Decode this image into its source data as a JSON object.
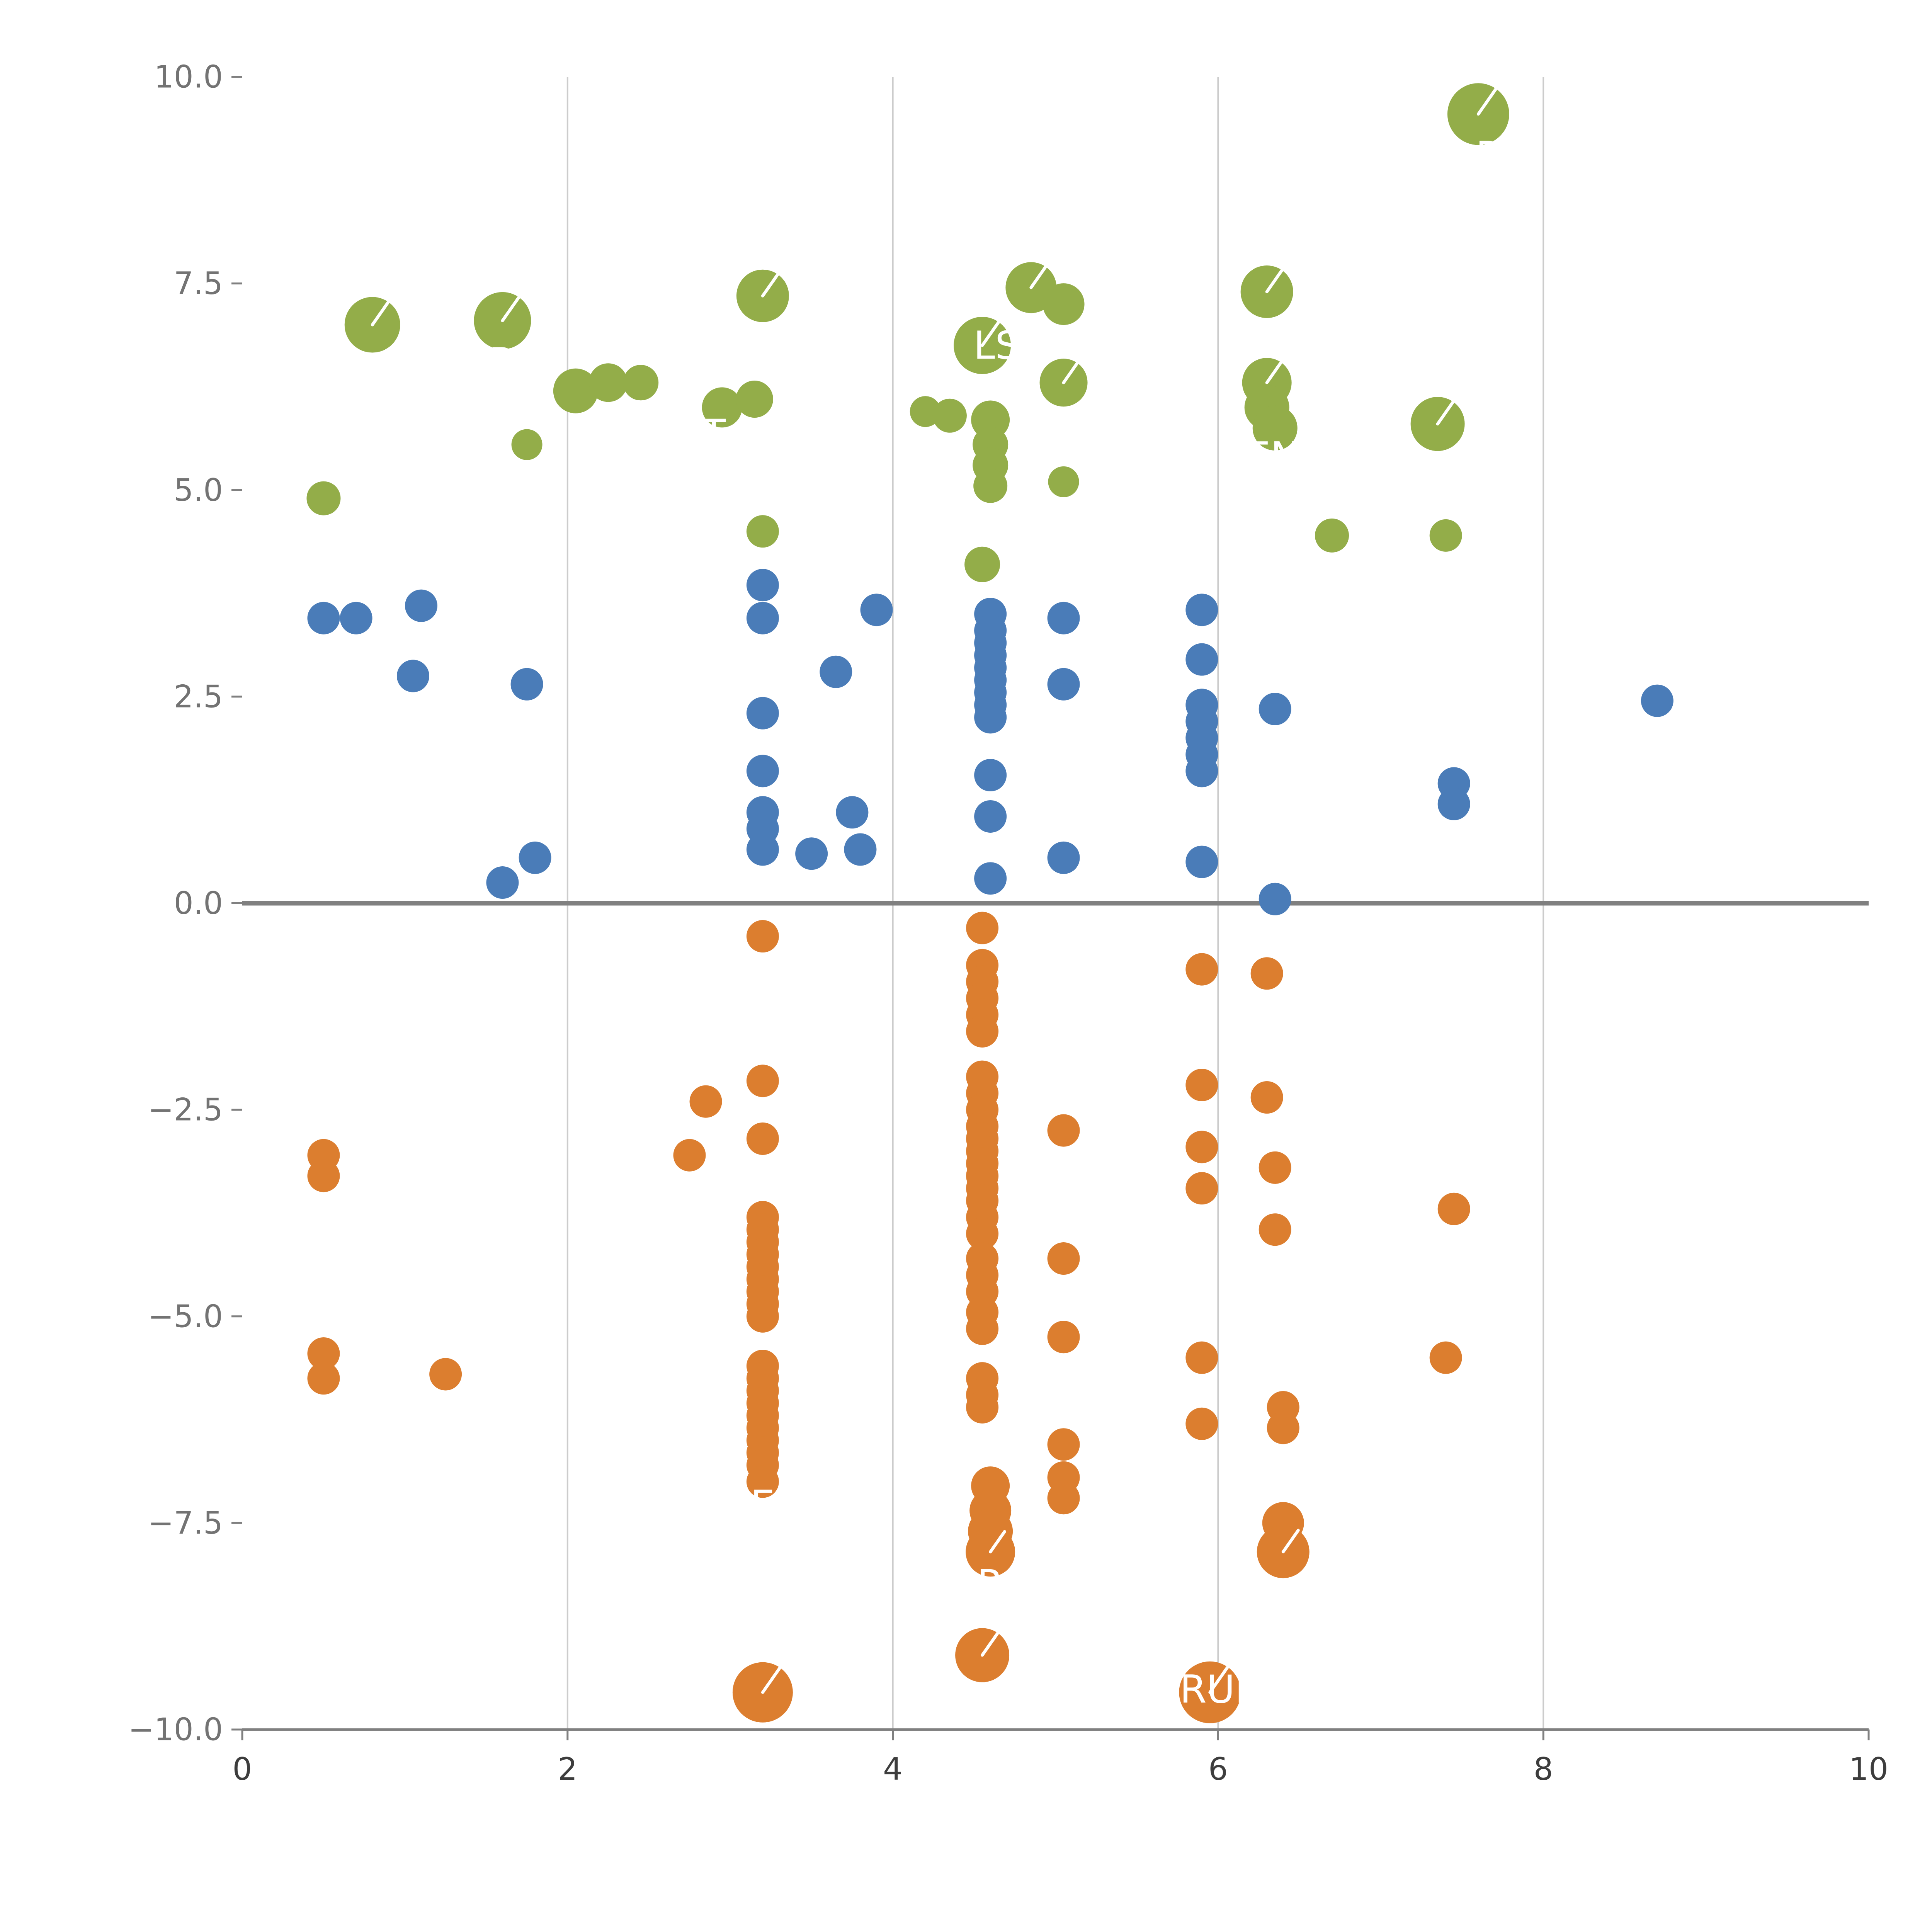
{
  "chart_data": {
    "type": "scatter",
    "title": "",
    "xlabel": "",
    "ylabel": "",
    "xlim": [
      0,
      10
    ],
    "ylim": [
      -10,
      10
    ],
    "x_ticks": [
      0,
      2,
      4,
      6,
      8,
      10
    ],
    "x_tick_labels": [
      "0",
      "2",
      "4",
      "6",
      "8",
      "10"
    ],
    "y_ticks": [
      10.0,
      7.5,
      5.0,
      2.5,
      0.0,
      -2.5,
      -5.0,
      -7.5,
      -10.0
    ],
    "y_tick_labels": [
      "10.0",
      "7.5",
      "5.0",
      "2.5",
      "0.0",
      "−2.5",
      "−5.0",
      "−7.5",
      "−10.0"
    ],
    "grid": "vertical-only",
    "grid_x": [
      2,
      4,
      6,
      8
    ],
    "zero_line": true,
    "legend": "none",
    "colors": {
      "green": "#93ad49",
      "blue": "#4a7cb8",
      "orange": "#dc7e2f",
      "grid": "#cccccc",
      "zero_line": "#808080",
      "axis": "#808080",
      "x_tick_label": "#3d3d3d",
      "y_tick_label": "#737373",
      "point_label": "#ffffff"
    },
    "point_labels_visible": [
      "R",
      "T",
      "LSI",
      "EN",
      "R",
      "E",
      "R",
      "RUI"
    ],
    "series": [
      {
        "name": "green",
        "color_key": "green",
        "default_radius": 42,
        "points": [
          [
            0.5,
            4.9,
            44
          ],
          [
            0.8,
            7.0,
            72
          ],
          [
            1.6,
            7.05,
            74,
            "R",
            [
              0,
              1.45
            ]
          ],
          [
            1.75,
            5.55,
            40
          ],
          [
            2.05,
            6.2,
            58
          ],
          [
            2.25,
            6.3,
            50
          ],
          [
            2.45,
            6.3,
            46
          ],
          [
            2.95,
            6.0,
            52,
            "T",
            [
              -0.4,
              1.3
            ]
          ],
          [
            3.15,
            6.1,
            48
          ],
          [
            3.2,
            7.35,
            68
          ],
          [
            3.2,
            4.5,
            42
          ],
          [
            4.2,
            5.95,
            40
          ],
          [
            4.35,
            5.9,
            44
          ],
          [
            4.55,
            6.75,
            74,
            "LSI",
            [
              0.7,
              0.0
            ]
          ],
          [
            4.6,
            5.85,
            50
          ],
          [
            4.6,
            5.55,
            46
          ],
          [
            4.6,
            5.3,
            46
          ],
          [
            4.6,
            5.05,
            44
          ],
          [
            4.55,
            4.1,
            46
          ],
          [
            4.85,
            7.45,
            66
          ],
          [
            5.05,
            7.25,
            54
          ],
          [
            5.05,
            6.3,
            62
          ],
          [
            5.05,
            5.1,
            40
          ],
          [
            6.3,
            7.4,
            68
          ],
          [
            6.3,
            6.3,
            64
          ],
          [
            6.3,
            6.0,
            58
          ],
          [
            6.35,
            5.75,
            58,
            "EN",
            [
              -0.1,
              1.25
            ]
          ],
          [
            6.7,
            4.45,
            44
          ],
          [
            7.35,
            5.8,
            70
          ],
          [
            7.4,
            4.45,
            42
          ],
          [
            7.6,
            9.55,
            80,
            "R",
            [
              0.35,
              1.35
            ]
          ]
        ]
      },
      {
        "name": "blue",
        "color_key": "blue",
        "default_radius": 42,
        "points": [
          [
            0.5,
            3.45
          ],
          [
            0.7,
            3.45
          ],
          [
            1.1,
            3.6
          ],
          [
            1.05,
            2.75
          ],
          [
            1.75,
            2.65
          ],
          [
            1.6,
            0.25
          ],
          [
            1.8,
            0.55
          ],
          [
            3.2,
            3.85
          ],
          [
            3.2,
            3.45
          ],
          [
            3.2,
            2.3
          ],
          [
            3.2,
            1.6
          ],
          [
            3.2,
            1.1
          ],
          [
            3.2,
            0.9
          ],
          [
            3.2,
            0.65
          ],
          [
            3.5,
            0.6
          ],
          [
            3.65,
            2.8
          ],
          [
            3.75,
            1.1
          ],
          [
            3.8,
            0.65
          ],
          [
            3.9,
            3.55
          ],
          [
            4.6,
            3.5
          ],
          [
            4.6,
            3.3
          ],
          [
            4.6,
            3.15
          ],
          [
            4.6,
            3.0
          ],
          [
            4.6,
            2.85
          ],
          [
            4.6,
            2.7
          ],
          [
            4.6,
            2.55
          ],
          [
            4.6,
            2.4
          ],
          [
            4.6,
            2.25
          ],
          [
            4.6,
            1.55
          ],
          [
            4.6,
            1.05
          ],
          [
            4.6,
            0.3
          ],
          [
            5.05,
            3.45
          ],
          [
            5.05,
            2.65
          ],
          [
            5.05,
            0.55
          ],
          [
            5.9,
            3.55
          ],
          [
            5.9,
            2.95
          ],
          [
            5.9,
            2.4
          ],
          [
            5.9,
            2.2
          ],
          [
            5.9,
            2.0
          ],
          [
            5.9,
            1.8
          ],
          [
            5.9,
            1.6
          ],
          [
            5.9,
            0.5
          ],
          [
            6.35,
            2.35
          ],
          [
            6.35,
            0.05
          ],
          [
            7.45,
            1.45
          ],
          [
            7.45,
            1.2
          ],
          [
            8.7,
            2.45
          ]
        ]
      },
      {
        "name": "orange",
        "color_key": "orange",
        "default_radius": 42,
        "points": [
          [
            0.5,
            -3.05
          ],
          [
            0.5,
            -3.3
          ],
          [
            0.5,
            -5.45
          ],
          [
            0.5,
            -5.75
          ],
          [
            1.25,
            -5.7
          ],
          [
            2.75,
            -3.05
          ],
          [
            2.85,
            -2.4
          ],
          [
            3.2,
            -0.4
          ],
          [
            3.2,
            -2.15
          ],
          [
            3.2,
            -2.85
          ],
          [
            3.2,
            -3.8
          ],
          [
            3.2,
            -3.95
          ],
          [
            3.2,
            -4.1
          ],
          [
            3.2,
            -4.25
          ],
          [
            3.2,
            -4.4
          ],
          [
            3.2,
            -4.55
          ],
          [
            3.2,
            -4.7
          ],
          [
            3.2,
            -4.85
          ],
          [
            3.2,
            -5.0
          ],
          [
            3.2,
            -5.6
          ],
          [
            3.2,
            -5.75
          ],
          [
            3.2,
            -5.9
          ],
          [
            3.2,
            -6.05
          ],
          [
            3.2,
            -6.2
          ],
          [
            3.2,
            -6.35
          ],
          [
            3.2,
            -6.5
          ],
          [
            3.2,
            -6.65
          ],
          [
            3.2,
            -6.8
          ],
          [
            3.2,
            -7.0,
            42,
            "E",
            [
              0,
              1.4
            ]
          ],
          [
            3.2,
            -9.55,
            78
          ],
          [
            4.55,
            -0.3
          ],
          [
            4.55,
            -0.75
          ],
          [
            4.55,
            -0.95
          ],
          [
            4.55,
            -1.15
          ],
          [
            4.55,
            -1.35
          ],
          [
            4.55,
            -1.55
          ],
          [
            4.55,
            -2.1
          ],
          [
            4.55,
            -2.3
          ],
          [
            4.55,
            -2.5
          ],
          [
            4.55,
            -2.7
          ],
          [
            4.55,
            -2.85
          ],
          [
            4.55,
            -3.0
          ],
          [
            4.55,
            -3.15
          ],
          [
            4.55,
            -3.3
          ],
          [
            4.55,
            -3.45
          ],
          [
            4.55,
            -3.6
          ],
          [
            4.55,
            -3.8
          ],
          [
            4.55,
            -4.0
          ],
          [
            4.55,
            -4.3
          ],
          [
            4.55,
            -4.5
          ],
          [
            4.55,
            -4.7
          ],
          [
            4.55,
            -4.95
          ],
          [
            4.55,
            -5.15
          ],
          [
            4.55,
            -5.75
          ],
          [
            4.55,
            -5.95
          ],
          [
            4.55,
            -6.1
          ],
          [
            4.6,
            -7.05,
            50
          ],
          [
            4.6,
            -7.35,
            54
          ],
          [
            4.6,
            -7.6,
            58
          ],
          [
            4.6,
            -7.85,
            64,
            "R",
            [
              0,
              1.3
            ]
          ],
          [
            4.55,
            -9.1,
            70
          ],
          [
            5.05,
            -2.75
          ],
          [
            5.05,
            -4.3
          ],
          [
            5.05,
            -5.25
          ],
          [
            5.05,
            -6.55
          ],
          [
            5.05,
            -6.95
          ],
          [
            5.05,
            -7.2
          ],
          [
            5.9,
            -0.8
          ],
          [
            5.9,
            -2.2
          ],
          [
            5.9,
            -2.95
          ],
          [
            5.9,
            -3.45
          ],
          [
            5.9,
            -5.5
          ],
          [
            5.9,
            -6.3
          ],
          [
            5.95,
            -9.55,
            80,
            "RUI",
            [
              0.1,
              -0.1
            ]
          ],
          [
            6.3,
            -0.85
          ],
          [
            6.3,
            -2.35
          ],
          [
            6.35,
            -3.2
          ],
          [
            6.35,
            -3.95
          ],
          [
            6.4,
            -6.1
          ],
          [
            6.4,
            -6.35
          ],
          [
            6.4,
            -7.5,
            54
          ],
          [
            6.4,
            -7.85,
            68
          ],
          [
            7.45,
            -3.7
          ],
          [
            7.4,
            -5.5
          ]
        ]
      }
    ],
    "leader_line_min_radius": 60,
    "tick_font_size": 80,
    "point_label_font_size": 100
  }
}
